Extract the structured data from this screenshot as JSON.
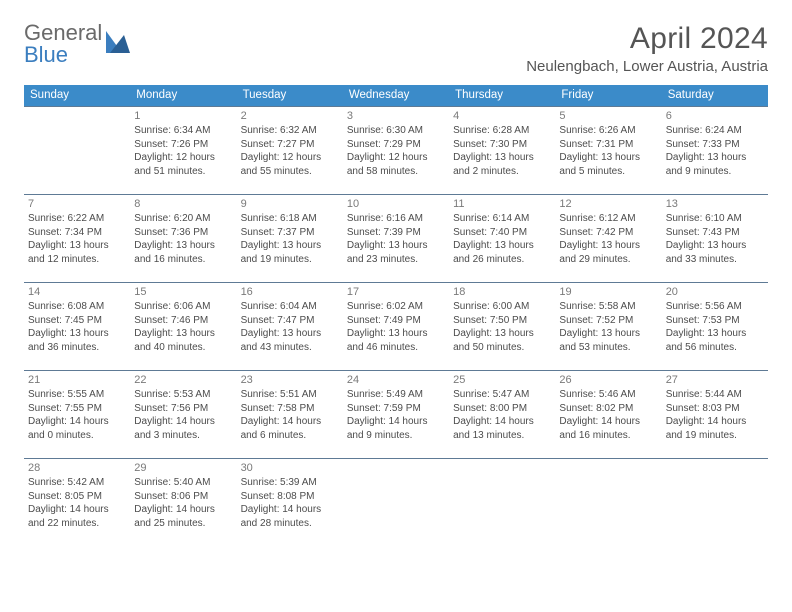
{
  "brand": {
    "word1": "General",
    "word2": "Blue"
  },
  "title": "April 2024",
  "location": "Neulengbach, Lower Austria, Austria",
  "colors": {
    "header_bg": "#3b8bc9",
    "header_fg": "#ffffff",
    "rule": "#5e7a95",
    "brand_gray": "#6a6a6a",
    "brand_blue": "#3b7ebf"
  },
  "weekdays": [
    "Sunday",
    "Monday",
    "Tuesday",
    "Wednesday",
    "Thursday",
    "Friday",
    "Saturday"
  ],
  "weeks": [
    [
      {
        "n": "",
        "sr": "",
        "ss": "",
        "dl": ""
      },
      {
        "n": "1",
        "sr": "Sunrise: 6:34 AM",
        "ss": "Sunset: 7:26 PM",
        "dl": "Daylight: 12 hours and 51 minutes."
      },
      {
        "n": "2",
        "sr": "Sunrise: 6:32 AM",
        "ss": "Sunset: 7:27 PM",
        "dl": "Daylight: 12 hours and 55 minutes."
      },
      {
        "n": "3",
        "sr": "Sunrise: 6:30 AM",
        "ss": "Sunset: 7:29 PM",
        "dl": "Daylight: 12 hours and 58 minutes."
      },
      {
        "n": "4",
        "sr": "Sunrise: 6:28 AM",
        "ss": "Sunset: 7:30 PM",
        "dl": "Daylight: 13 hours and 2 minutes."
      },
      {
        "n": "5",
        "sr": "Sunrise: 6:26 AM",
        "ss": "Sunset: 7:31 PM",
        "dl": "Daylight: 13 hours and 5 minutes."
      },
      {
        "n": "6",
        "sr": "Sunrise: 6:24 AM",
        "ss": "Sunset: 7:33 PM",
        "dl": "Daylight: 13 hours and 9 minutes."
      }
    ],
    [
      {
        "n": "7",
        "sr": "Sunrise: 6:22 AM",
        "ss": "Sunset: 7:34 PM",
        "dl": "Daylight: 13 hours and 12 minutes."
      },
      {
        "n": "8",
        "sr": "Sunrise: 6:20 AM",
        "ss": "Sunset: 7:36 PM",
        "dl": "Daylight: 13 hours and 16 minutes."
      },
      {
        "n": "9",
        "sr": "Sunrise: 6:18 AM",
        "ss": "Sunset: 7:37 PM",
        "dl": "Daylight: 13 hours and 19 minutes."
      },
      {
        "n": "10",
        "sr": "Sunrise: 6:16 AM",
        "ss": "Sunset: 7:39 PM",
        "dl": "Daylight: 13 hours and 23 minutes."
      },
      {
        "n": "11",
        "sr": "Sunrise: 6:14 AM",
        "ss": "Sunset: 7:40 PM",
        "dl": "Daylight: 13 hours and 26 minutes."
      },
      {
        "n": "12",
        "sr": "Sunrise: 6:12 AM",
        "ss": "Sunset: 7:42 PM",
        "dl": "Daylight: 13 hours and 29 minutes."
      },
      {
        "n": "13",
        "sr": "Sunrise: 6:10 AM",
        "ss": "Sunset: 7:43 PM",
        "dl": "Daylight: 13 hours and 33 minutes."
      }
    ],
    [
      {
        "n": "14",
        "sr": "Sunrise: 6:08 AM",
        "ss": "Sunset: 7:45 PM",
        "dl": "Daylight: 13 hours and 36 minutes."
      },
      {
        "n": "15",
        "sr": "Sunrise: 6:06 AM",
        "ss": "Sunset: 7:46 PM",
        "dl": "Daylight: 13 hours and 40 minutes."
      },
      {
        "n": "16",
        "sr": "Sunrise: 6:04 AM",
        "ss": "Sunset: 7:47 PM",
        "dl": "Daylight: 13 hours and 43 minutes."
      },
      {
        "n": "17",
        "sr": "Sunrise: 6:02 AM",
        "ss": "Sunset: 7:49 PM",
        "dl": "Daylight: 13 hours and 46 minutes."
      },
      {
        "n": "18",
        "sr": "Sunrise: 6:00 AM",
        "ss": "Sunset: 7:50 PM",
        "dl": "Daylight: 13 hours and 50 minutes."
      },
      {
        "n": "19",
        "sr": "Sunrise: 5:58 AM",
        "ss": "Sunset: 7:52 PM",
        "dl": "Daylight: 13 hours and 53 minutes."
      },
      {
        "n": "20",
        "sr": "Sunrise: 5:56 AM",
        "ss": "Sunset: 7:53 PM",
        "dl": "Daylight: 13 hours and 56 minutes."
      }
    ],
    [
      {
        "n": "21",
        "sr": "Sunrise: 5:55 AM",
        "ss": "Sunset: 7:55 PM",
        "dl": "Daylight: 14 hours and 0 minutes."
      },
      {
        "n": "22",
        "sr": "Sunrise: 5:53 AM",
        "ss": "Sunset: 7:56 PM",
        "dl": "Daylight: 14 hours and 3 minutes."
      },
      {
        "n": "23",
        "sr": "Sunrise: 5:51 AM",
        "ss": "Sunset: 7:58 PM",
        "dl": "Daylight: 14 hours and 6 minutes."
      },
      {
        "n": "24",
        "sr": "Sunrise: 5:49 AM",
        "ss": "Sunset: 7:59 PM",
        "dl": "Daylight: 14 hours and 9 minutes."
      },
      {
        "n": "25",
        "sr": "Sunrise: 5:47 AM",
        "ss": "Sunset: 8:00 PM",
        "dl": "Daylight: 14 hours and 13 minutes."
      },
      {
        "n": "26",
        "sr": "Sunrise: 5:46 AM",
        "ss": "Sunset: 8:02 PM",
        "dl": "Daylight: 14 hours and 16 minutes."
      },
      {
        "n": "27",
        "sr": "Sunrise: 5:44 AM",
        "ss": "Sunset: 8:03 PM",
        "dl": "Daylight: 14 hours and 19 minutes."
      }
    ],
    [
      {
        "n": "28",
        "sr": "Sunrise: 5:42 AM",
        "ss": "Sunset: 8:05 PM",
        "dl": "Daylight: 14 hours and 22 minutes."
      },
      {
        "n": "29",
        "sr": "Sunrise: 5:40 AM",
        "ss": "Sunset: 8:06 PM",
        "dl": "Daylight: 14 hours and 25 minutes."
      },
      {
        "n": "30",
        "sr": "Sunrise: 5:39 AM",
        "ss": "Sunset: 8:08 PM",
        "dl": "Daylight: 14 hours and 28 minutes."
      },
      {
        "n": "",
        "sr": "",
        "ss": "",
        "dl": ""
      },
      {
        "n": "",
        "sr": "",
        "ss": "",
        "dl": ""
      },
      {
        "n": "",
        "sr": "",
        "ss": "",
        "dl": ""
      },
      {
        "n": "",
        "sr": "",
        "ss": "",
        "dl": ""
      }
    ]
  ]
}
